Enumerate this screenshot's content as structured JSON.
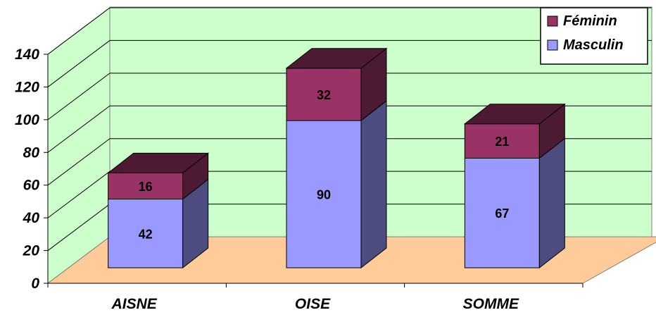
{
  "chart_data": {
    "type": "bar",
    "stacked": true,
    "three_d": true,
    "categories": [
      "AISNE",
      "OISE",
      "SOMME"
    ],
    "series": [
      {
        "name": "Masculin",
        "values": [
          42,
          90,
          67
        ],
        "color": "#9999ff",
        "side_color": "#4c4c80"
      },
      {
        "name": "Féminin",
        "values": [
          16,
          32,
          21
        ],
        "color": "#993366",
        "side_color": "#4d1a33"
      }
    ],
    "ylim": [
      0,
      140
    ],
    "yticks": [
      "0",
      "20",
      "40",
      "60",
      "80",
      "100",
      "120",
      "140"
    ],
    "grid": true,
    "legend_position": "top-right",
    "colors": {
      "wall": "#ccffcc",
      "floor": "#ffcc99",
      "grid": "#000000"
    }
  }
}
